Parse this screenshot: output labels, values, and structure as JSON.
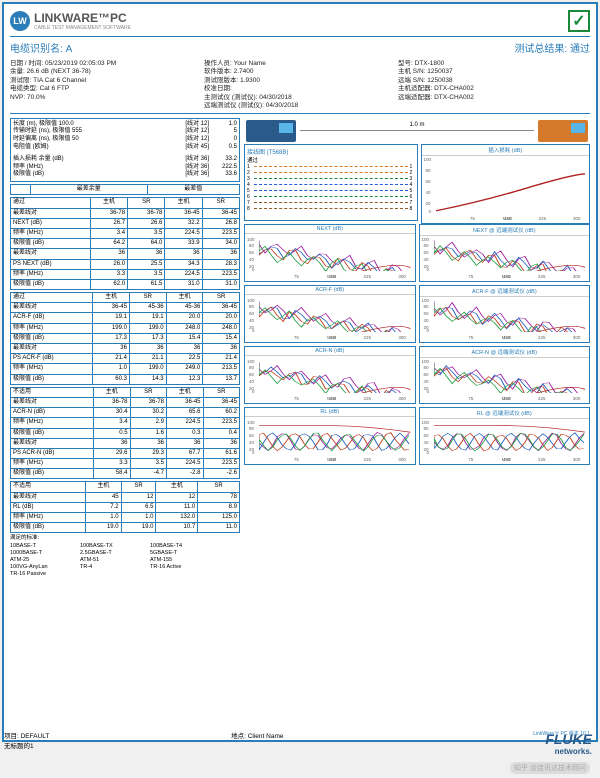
{
  "header": {
    "logo_initials": "LW",
    "logo_text": "LINKWARE™PC",
    "logo_sub": "CABLE TEST MANAGEMENT SOFTWARE"
  },
  "title": {
    "cable_id_label": "电缆识别名:",
    "cable_id": "A",
    "result_label": "测试总结果:",
    "result": "通过"
  },
  "info": {
    "c1": [
      "日期 / 时间: 05/23/2019  02:05:03 PM",
      "余量: 26.6 dB (NEXT 36-78)",
      "测试限: TIA Cat 6 Channel",
      "电缆类型: Cat 6 FTP",
      "NVP: 70.0%"
    ],
    "c2": [
      "操作人员: Your Name",
      "软件版本: 2.7400",
      "测试限版本: 1.9300",
      "校准日期:",
      "    主测试仪 (测试仪): 04/30/2018",
      "    远端测试仪 (测试仪): 04/30/2018"
    ],
    "c3": [
      "型号: DTX-1800",
      "主机 S/N: 1250037",
      "远端 S/N: 1250038",
      "主机适配器: DTX-CHA002",
      "远端适配器: DTX-CHA002"
    ]
  },
  "box1": {
    "rows": [
      [
        "长度 (m), 极限值 100.0",
        "[线对 12]",
        "1.0"
      ],
      [
        "传输时延 (ns), 极限值 555",
        "[线对 12]",
        "5"
      ],
      [
        "时延偏离 (ns), 极限值 50",
        "[线对 12]",
        "0"
      ],
      [
        "电阻值 (欧姆)",
        "[线对 45]",
        "0.5"
      ]
    ],
    "gap": true,
    "rows2": [
      [
        "插入损耗 余量 (dB)",
        "[线对 36]",
        "33.2"
      ],
      [
        "频率 (MHz)",
        "[线对 36]",
        "222.5"
      ],
      [
        "极限值 (dB)",
        "[线对 36]",
        "33.6"
      ]
    ]
  },
  "margin_table": {
    "title_left": "最差余量",
    "title_right": "最差值",
    "sections": [
      {
        "head": "通过",
        "hdr": [
          "",
          "主机",
          "SR",
          "主机",
          "SR"
        ],
        "rows": [
          [
            "最差线对",
            "36-78",
            "36-78",
            "36-45",
            "36-45"
          ],
          [
            "NEXT (dB)",
            "26.7",
            "26.6",
            "32.2",
            "26.8"
          ],
          [
            "频率 (MHz)",
            "3.4",
            "3.5",
            "224.5",
            "223.5"
          ],
          [
            "极限值 (dB)",
            "64.2",
            "64.0",
            "33.9",
            "34.0"
          ]
        ],
        "rows2": [
          [
            "最差线对",
            "36",
            "36",
            "36",
            "36"
          ],
          [
            "PS NEXT (dB)",
            "26.0",
            "25.5",
            "34.3",
            "28.3"
          ],
          [
            "频率 (MHz)",
            "3.3",
            "3.5",
            "224.5",
            "223.5"
          ],
          [
            "极限值 (dB)",
            "62.0",
            "61.5",
            "31.0",
            "31.0"
          ]
        ]
      },
      {
        "head": "通过",
        "hdr": [
          "",
          "主机",
          "SR",
          "主机",
          "SR"
        ],
        "rows": [
          [
            "最差线对",
            "36-45",
            "45-36",
            "45-36",
            "36-45"
          ],
          [
            "ACR-F (dB)",
            "19.1",
            "19.1",
            "20.0",
            "20.0"
          ],
          [
            "频率 (MHz)",
            "199.0",
            "199.0",
            "248.0",
            "248.0"
          ],
          [
            "极限值 (dB)",
            "17.3",
            "17.3",
            "15.4",
            "15.4"
          ]
        ],
        "rows2": [
          [
            "最差线对",
            "36",
            "36",
            "36",
            "36"
          ],
          [
            "PS ACR-F (dB)",
            "21.4",
            "21.1",
            "22.5",
            "21.4"
          ],
          [
            "频率 (MHz)",
            "1.0",
            "199.0",
            "249.0",
            "213.5"
          ],
          [
            "极限值 (dB)",
            "60.3",
            "14.3",
            "12.3",
            "13.7"
          ]
        ]
      },
      {
        "head": "不适用",
        "hdr": [
          "",
          "主机",
          "SR",
          "主机",
          "SR"
        ],
        "rows": [
          [
            "最差线对",
            "36-78",
            "36-78",
            "36-45",
            "36-45"
          ],
          [
            "ACR-N (dB)",
            "30.4",
            "30.2",
            "65.6",
            "60.2"
          ],
          [
            "频率 (MHz)",
            "3.4",
            "2.9",
            "224.5",
            "223.5"
          ],
          [
            "极限值 (dB)",
            "0.5",
            "1.6",
            "0.3",
            "0.4"
          ]
        ],
        "rows2": [
          [
            "最差线对",
            "36",
            "36",
            "36",
            "36"
          ],
          [
            "PS ACR-N (dB)",
            "29.6",
            "29.3",
            "67.7",
            "61.6"
          ],
          [
            "频率 (MHz)",
            "3.3",
            "3.5",
            "224.5",
            "223.5"
          ],
          [
            "极限值 (dB)",
            "58.4",
            "-4.7",
            "-2.8",
            "-2.6"
          ]
        ]
      },
      {
        "head": "不适用",
        "hdr": [
          "",
          "主机",
          "SR",
          "主机",
          "SR"
        ],
        "rows": [
          [
            "最差线对",
            "45",
            "12",
            "12",
            "78"
          ],
          [
            "RL (dB)",
            "7.2",
            "6.5",
            "11.0",
            "8.9"
          ],
          [
            "频率 (MHz)",
            "1.0",
            "1.0",
            "132.0",
            "125.0"
          ],
          [
            "极限值 (dB)",
            "19.0",
            "19.0",
            "10.7",
            "11.0"
          ]
        ]
      }
    ]
  },
  "standards": {
    "label": "满足的标准:",
    "items": [
      [
        "10BASE-T",
        "100BASE-TX",
        "100BASE-T4"
      ],
      [
        "1000BASE-T",
        "2.5GBASE-T",
        "5GBASE-T"
      ],
      [
        "ATM-25",
        "ATM-51",
        "ATM-155"
      ],
      [
        "100VG-AnyLan",
        "TR-4",
        "TR-16 Active"
      ],
      [
        "TR-16 Passive",
        "",
        ""
      ]
    ]
  },
  "conn_distance": "1.0 m",
  "wiremap": {
    "title": "接线图 (T568B)",
    "sub": "通过",
    "colors": [
      "#d47a2a",
      "#d47a2a",
      "#1a8a3a",
      "#2a5ad4",
      "#2a5ad4",
      "#1a8a3a",
      "#8a5a2a",
      "#8a5a2a"
    ]
  },
  "charts": [
    {
      "title": "插入损耗 (dB)",
      "type": "curve",
      "color": "#b02020"
    },
    {
      "title": "NEXT (dB)",
      "type": "multi"
    },
    {
      "title": "NEXT @ 远端测试仪 (dB)",
      "type": "multi"
    },
    {
      "title": "ACR-F (dB)",
      "type": "multi2"
    },
    {
      "title": "ACR-F @ 远端测试仪 (dB)",
      "type": "multi2"
    },
    {
      "title": "ACR-N (dB)",
      "type": "multi"
    },
    {
      "title": "ACR-N @ 远端测试仪 (dB)",
      "type": "multi"
    },
    {
      "title": "RL (dB)",
      "type": "rl"
    },
    {
      "title": "RL @ 远端测试仪 (dB)",
      "type": "rl"
    }
  ],
  "x_ticks": [
    "75",
    "150",
    "225",
    "300"
  ],
  "x_label": "MHz",
  "footer": {
    "left": "项目: DEFAULT",
    "center": "地点: Client Name",
    "sub": "无标题的1",
    "version": "LinkWare™ PC 版本 10.1"
  },
  "fluke": "FLUKE",
  "fluke_sub": "networks.",
  "watermark": "知乎 @连讯达技术顾问"
}
